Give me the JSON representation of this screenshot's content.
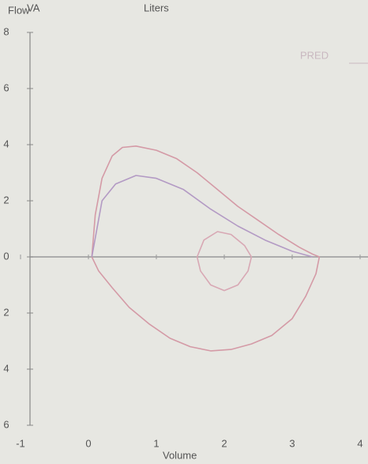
{
  "chart_data": {
    "type": "line",
    "ylabel": "Flow",
    "annotation": "VA",
    "title": "Liters",
    "legend_text": "PRED",
    "xlabel": "Volume",
    "xlim": [
      -1,
      4
    ],
    "xticks": [
      -1,
      0,
      1,
      2,
      3,
      4
    ],
    "ylim": [
      -6,
      8
    ],
    "yticks": [
      8,
      6,
      4,
      2,
      0,
      {
        "value": -2,
        "label": "2"
      },
      {
        "value": -4,
        "label": "4"
      },
      {
        "value": -6,
        "label": "6"
      }
    ],
    "series": [
      {
        "color": "#d49aa6",
        "x": [
          0.05,
          0.1,
          0.2,
          0.35,
          0.5,
          0.7,
          1.0,
          1.3,
          1.6,
          1.9,
          2.2,
          2.5,
          2.8,
          3.1,
          3.3,
          3.4,
          3.35,
          3.2,
          3.0,
          2.7,
          2.4,
          2.1,
          1.8,
          1.5,
          1.2,
          0.9,
          0.6,
          0.35,
          0.15,
          0.05
        ],
        "values": [
          0,
          1.5,
          2.8,
          3.6,
          3.9,
          3.95,
          3.8,
          3.5,
          3.0,
          2.4,
          1.8,
          1.3,
          0.8,
          0.35,
          0.1,
          0,
          -0.6,
          -1.4,
          -2.2,
          -2.8,
          -3.1,
          -3.3,
          -3.35,
          -3.2,
          -2.9,
          -2.4,
          -1.8,
          -1.1,
          -0.5,
          0
        ]
      },
      {
        "color": "#b39ac4",
        "x": [
          0.05,
          0.2,
          0.4,
          0.7,
          1.0,
          1.4,
          1.8,
          2.2,
          2.6,
          3.0,
          3.3
        ],
        "values": [
          0,
          2.0,
          2.6,
          2.9,
          2.8,
          2.4,
          1.7,
          1.1,
          0.6,
          0.2,
          0
        ]
      },
      {
        "color": "#d8a8b4",
        "x": [
          1.6,
          1.7,
          1.9,
          2.1,
          2.3,
          2.4,
          2.35,
          2.2,
          2.0,
          1.8,
          1.65,
          1.6
        ],
        "values": [
          0,
          0.6,
          0.9,
          0.8,
          0.4,
          0,
          -0.5,
          -1.0,
          -1.2,
          -1.0,
          -0.5,
          0
        ]
      }
    ]
  }
}
